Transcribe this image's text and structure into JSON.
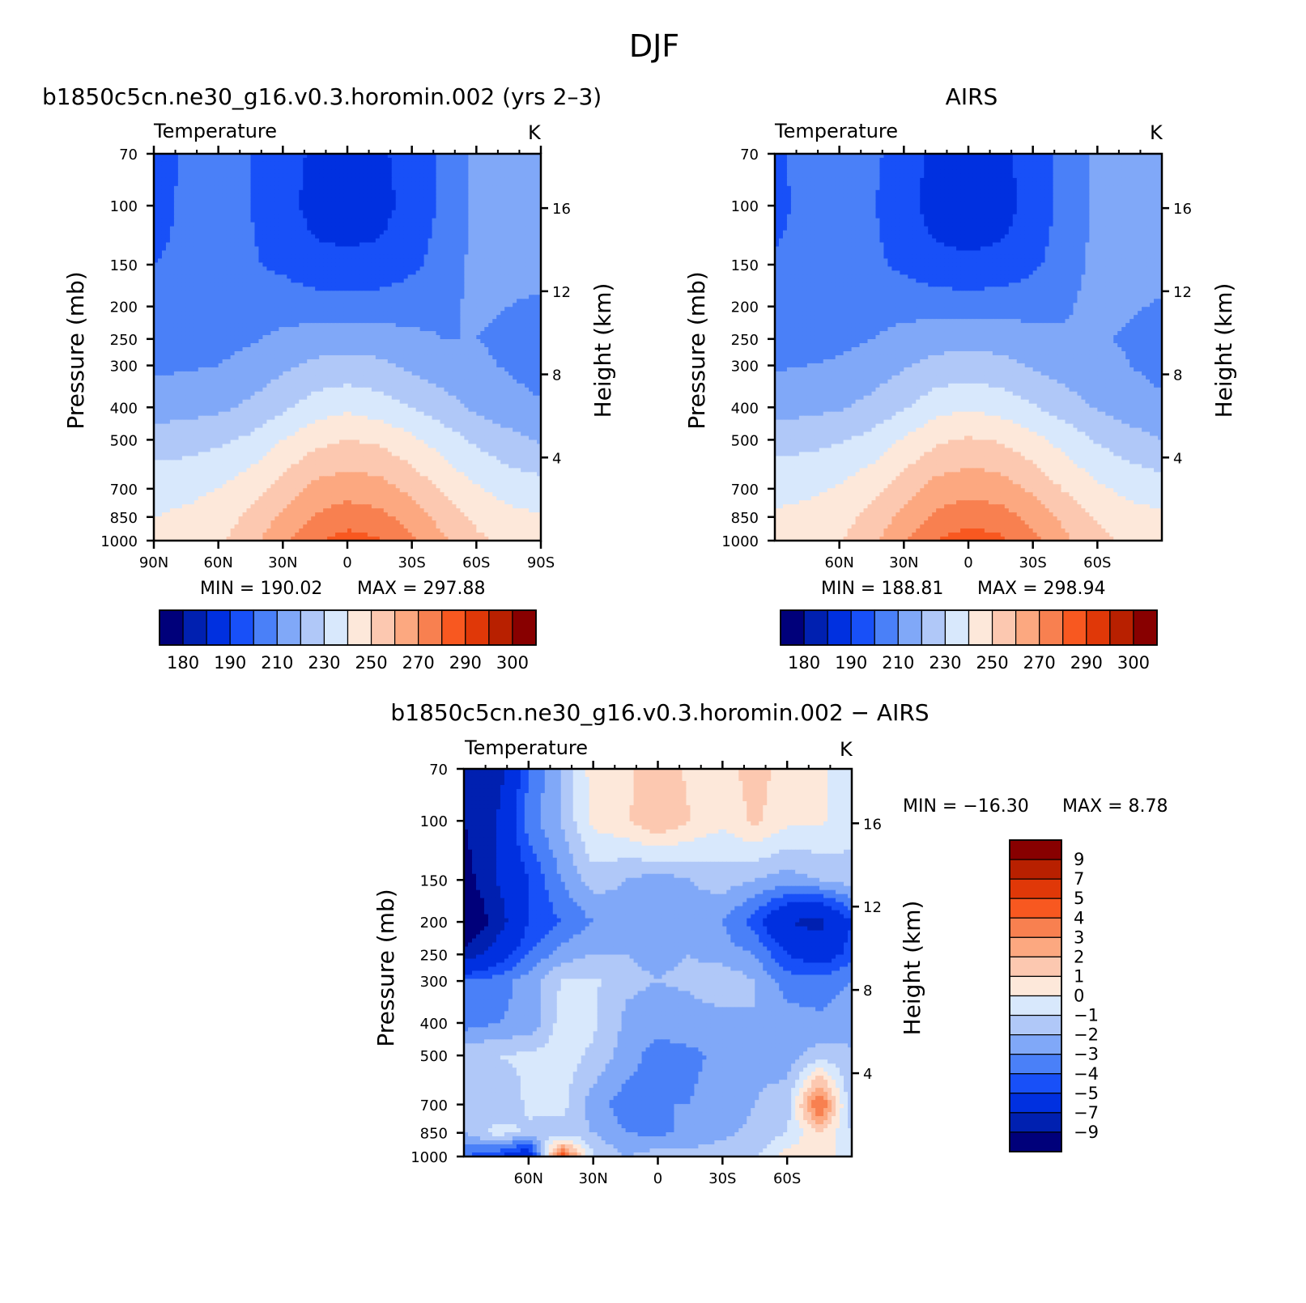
{
  "figure": {
    "title": "DJF"
  },
  "colors": {
    "abs_levels": [
      "#00007a",
      "#0020b0",
      "#0030e0",
      "#1850f8",
      "#4a80f8",
      "#80a8f8",
      "#b0c8f8",
      "#d8e8fc",
      "#fde8da",
      "#fcc8b0",
      "#fca880",
      "#f88050",
      "#f85820",
      "#e03808",
      "#b82000",
      "#880000"
    ],
    "diff_levels": [
      "#00007a",
      "#0020b0",
      "#0030e0",
      "#1850f8",
      "#4a80f8",
      "#80a8f8",
      "#b0c8f8",
      "#d8e8fc",
      "#fde8da",
      "#fcc8b0",
      "#fca880",
      "#f88050",
      "#f85820",
      "#e03808",
      "#b82000",
      "#880000"
    ]
  },
  "chart_data": [
    {
      "id": "model",
      "type": "heatmap",
      "title": "b1850c5cn.ne30_g16.v0.3.horomin.002 (yrs 2–3)",
      "subtitle_left": "Temperature",
      "units": "K",
      "ylabel": "Pressure (mb)",
      "y2label": "Height (km)",
      "pressure_ticks": [
        70,
        100,
        150,
        200,
        250,
        300,
        400,
        500,
        700,
        850,
        1000
      ],
      "height_ticks": [
        16,
        12,
        8,
        4
      ],
      "lat_ticks": [
        {
          "lat": 90,
          "label": "90N"
        },
        {
          "lat": 60,
          "label": "60N"
        },
        {
          "lat": 30,
          "label": "30N"
        },
        {
          "lat": 0,
          "label": "0"
        },
        {
          "lat": -30,
          "label": "30S"
        },
        {
          "lat": -60,
          "label": "60S"
        },
        {
          "lat": -90,
          "label": "90S"
        }
      ],
      "xlim": [
        90,
        -90
      ],
      "ylim": [
        1000,
        70
      ],
      "min_label": "MIN = 190.02",
      "max_label": "MAX = 297.88",
      "colorbar_labels": [
        "180",
        "190",
        "210",
        "230",
        "250",
        "270",
        "290",
        "300"
      ],
      "latitudes": [
        90,
        75,
        60,
        45,
        30,
        15,
        0,
        -15,
        -30,
        -45,
        -60,
        -75,
        -90
      ],
      "pressures": [
        70,
        100,
        150,
        200,
        250,
        300,
        400,
        500,
        700,
        850,
        1000
      ],
      "values": [
        [
          205,
          212,
          214,
          210,
          205,
          198,
          197,
          198,
          205,
          212,
          222,
          226,
          230
        ],
        [
          206,
          212,
          213,
          210,
          204,
          196,
          195,
          196,
          204,
          212,
          222,
          225,
          228
        ],
        [
          210,
          212,
          213,
          211,
          208,
          203,
          202,
          203,
          208,
          214,
          223,
          224,
          224
        ],
        [
          213,
          213,
          214,
          215,
          216,
          215,
          214,
          215,
          216,
          218,
          222,
          220,
          218
        ],
        [
          215,
          216,
          217,
          219,
          222,
          225,
          226,
          225,
          222,
          220,
          220,
          218,
          216
        ],
        [
          218,
          219,
          220,
          223,
          228,
          232,
          233,
          232,
          228,
          224,
          222,
          219,
          216
        ],
        [
          225,
          226,
          228,
          232,
          238,
          245,
          248,
          245,
          240,
          234,
          228,
          224,
          221
        ],
        [
          235,
          236,
          238,
          242,
          250,
          257,
          260,
          258,
          252,
          245,
          238,
          233,
          229
        ],
        [
          246,
          247,
          250,
          256,
          264,
          273,
          276,
          274,
          267,
          258,
          251,
          246,
          244
        ],
        [
          250,
          252,
          255,
          262,
          272,
          281,
          285,
          283,
          276,
          266,
          258,
          253,
          251
        ],
        [
          252,
          254,
          258,
          266,
          278,
          289,
          294,
          291,
          282,
          271,
          262,
          257,
          255
        ]
      ]
    },
    {
      "id": "obs",
      "type": "heatmap",
      "title": "AIRS",
      "subtitle_left": "Temperature",
      "units": "K",
      "ylabel": "Pressure (mb)",
      "y2label": "Height (km)",
      "pressure_ticks": [
        70,
        100,
        150,
        200,
        250,
        300,
        400,
        500,
        700,
        850,
        1000
      ],
      "height_ticks": [
        16,
        12,
        8,
        4
      ],
      "lat_ticks": [
        {
          "lat": 60,
          "label": "60N"
        },
        {
          "lat": 30,
          "label": "30N"
        },
        {
          "lat": 0,
          "label": "0"
        },
        {
          "lat": -30,
          "label": "30S"
        },
        {
          "lat": -60,
          "label": "60S"
        }
      ],
      "xlim": [
        90,
        -90
      ],
      "ylim": [
        1000,
        70
      ],
      "min_label": "MIN = 188.81",
      "max_label": "MAX = 298.94",
      "colorbar_labels": [
        "180",
        "190",
        "210",
        "230",
        "250",
        "270",
        "290",
        "300"
      ],
      "latitudes": [
        90,
        75,
        60,
        45,
        30,
        15,
        0,
        -15,
        -30,
        -45,
        -60,
        -75,
        -90
      ],
      "pressures": [
        70,
        100,
        150,
        200,
        250,
        300,
        400,
        500,
        700,
        850,
        1000
      ],
      "values": [
        [
          208,
          214,
          215,
          212,
          206,
          197,
          196,
          197,
          206,
          213,
          222,
          225,
          230
        ],
        [
          207,
          213,
          214,
          211,
          204,
          195,
          193,
          195,
          204,
          213,
          222,
          225,
          228
        ],
        [
          211,
          213,
          214,
          212,
          208,
          203,
          202,
          203,
          208,
          215,
          223,
          224,
          224
        ],
        [
          214,
          214,
          215,
          216,
          217,
          216,
          215,
          216,
          217,
          219,
          223,
          221,
          219
        ],
        [
          216,
          217,
          218,
          220,
          223,
          226,
          227,
          226,
          223,
          221,
          221,
          219,
          217
        ],
        [
          219,
          220,
          221,
          224,
          229,
          233,
          234,
          233,
          229,
          225,
          223,
          220,
          217
        ],
        [
          226,
          227,
          229,
          233,
          239,
          246,
          249,
          246,
          241,
          235,
          229,
          225,
          222
        ],
        [
          236,
          237,
          239,
          243,
          251,
          258,
          261,
          259,
          253,
          246,
          239,
          234,
          230
        ],
        [
          247,
          248,
          251,
          257,
          265,
          274,
          277,
          275,
          268,
          259,
          252,
          247,
          245
        ],
        [
          251,
          253,
          256,
          263,
          273,
          282,
          286,
          284,
          277,
          267,
          259,
          254,
          252
        ],
        [
          253,
          255,
          259,
          267,
          279,
          290,
          295,
          292,
          283,
          272,
          263,
          258,
          256
        ]
      ]
    },
    {
      "id": "diff",
      "type": "heatmap",
      "title": "b1850c5cn.ne30_g16.v0.3.horomin.002 − AIRS",
      "subtitle_left": "Temperature",
      "units": "K",
      "ylabel": "Pressure (mb)",
      "y2label": "Height (km)",
      "pressure_ticks": [
        70,
        100,
        150,
        200,
        250,
        300,
        400,
        500,
        700,
        850,
        1000
      ],
      "height_ticks": [
        16,
        12,
        8,
        4
      ],
      "lat_ticks": [
        {
          "lat": 60,
          "label": "60N"
        },
        {
          "lat": 30,
          "label": "30N"
        },
        {
          "lat": 0,
          "label": "0"
        },
        {
          "lat": -30,
          "label": "30S"
        },
        {
          "lat": -60,
          "label": "60S"
        }
      ],
      "xlim": [
        90,
        -90
      ],
      "ylim": [
        1000,
        70
      ],
      "min_label": "MIN = −16.30",
      "max_label": "MAX = 8.78",
      "colorbar_labels": [
        "9",
        "7",
        "5",
        "4",
        "3",
        "2",
        "1",
        "0",
        "−1",
        "−2",
        "−3",
        "−4",
        "−5",
        "−7",
        "−9"
      ],
      "latitudes": [
        90,
        75,
        60,
        45,
        30,
        15,
        0,
        -15,
        -30,
        -45,
        -60,
        -75,
        -90
      ],
      "pressures": [
        70,
        100,
        150,
        200,
        250,
        300,
        400,
        500,
        700,
        850,
        1000
      ],
      "values": [
        [
          -9,
          -8,
          -4,
          -2,
          0.5,
          0.8,
          1.5,
          0.8,
          0.5,
          1.5,
          0.5,
          0.3,
          -1
        ],
        [
          -9,
          -7,
          -3.5,
          -2,
          0.3,
          0.8,
          2,
          1,
          0.2,
          1.2,
          0.3,
          0.2,
          -0.5
        ],
        [
          -10,
          -7,
          -5,
          -3,
          -1.5,
          -2,
          -2.5,
          -2,
          -1.5,
          -2,
          -2.5,
          -2,
          -1.5
        ],
        [
          -12,
          -8,
          -5,
          -4,
          -3,
          -2.5,
          -2.8,
          -2.5,
          -3,
          -4.5,
          -7,
          -7.5,
          -5
        ],
        [
          -8,
          -6,
          -4,
          -2.5,
          -2,
          -2,
          -2.2,
          -2,
          -2.5,
          -3,
          -5,
          -6,
          -4.5
        ],
        [
          -4,
          -3.5,
          -2.5,
          -1,
          -0.8,
          -1.8,
          -2,
          -1.8,
          -1.2,
          -2,
          -3.5,
          -3.5,
          -3
        ],
        [
          -3.5,
          -3,
          -2.8,
          -0.6,
          -0.8,
          -2.2,
          -2.5,
          -2.5,
          -2.5,
          -2,
          -2.5,
          -2.8,
          -2.5
        ],
        [
          -1.2,
          -1,
          -0.8,
          -0.5,
          -1.2,
          -2.5,
          -3.5,
          -3.2,
          -2.8,
          -2.2,
          -2.5,
          -1.5,
          -1.8
        ],
        [
          -1.8,
          -2,
          -0.8,
          -0.6,
          -2.5,
          -3.5,
          -3,
          -3,
          -2.5,
          -2,
          -1.5,
          4.5,
          -2
        ],
        [
          -2,
          -0.5,
          -1.2,
          -1.5,
          -2,
          -3,
          -3.2,
          -2.8,
          -2.2,
          -1.8,
          -1,
          1,
          -1
        ],
        [
          -4,
          -5,
          -7,
          5,
          -1,
          -2,
          -1.5,
          -1.5,
          -1.5,
          -1.2,
          0.5,
          0.5,
          -0.5
        ]
      ]
    }
  ]
}
